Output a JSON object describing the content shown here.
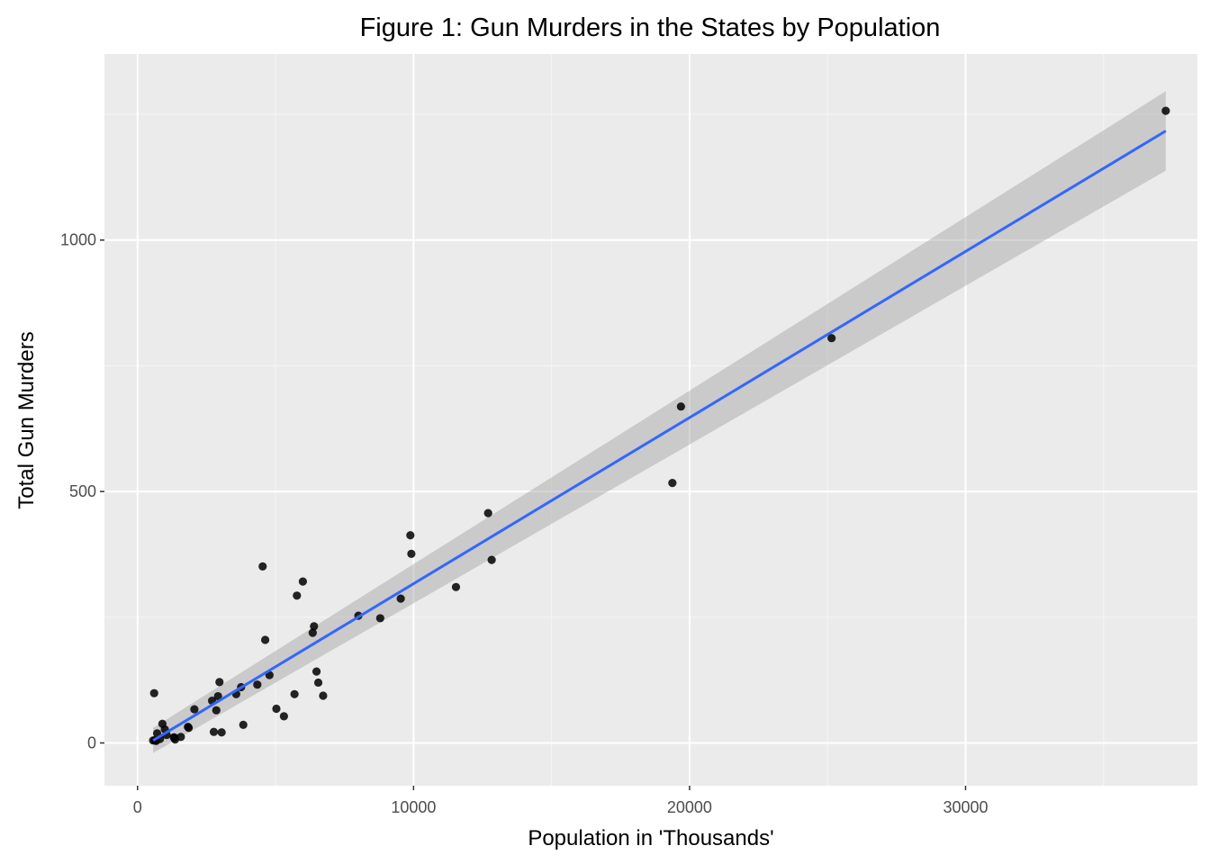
{
  "chart_data": {
    "type": "scatter",
    "title": "Figure 1: Gun Murders in the States by Population",
    "xlabel": "Population in 'Thousands'",
    "ylabel": "Total Gun Murders",
    "xlim": [
      -1200,
      38400
    ],
    "ylim": [
      -85,
      1370
    ],
    "x_ticks": [
      0,
      10000,
      20000,
      30000
    ],
    "x_tick_labels": [
      "0",
      "10000",
      "20000",
      "30000"
    ],
    "y_ticks": [
      0,
      500,
      1000
    ],
    "y_tick_labels": [
      "0",
      "500",
      "1000"
    ],
    "grid": true,
    "colors": {
      "panel_background": "#ebebeb",
      "grid_major": "#ffffff",
      "grid_minor": "#f5f5f5",
      "points": "#000000",
      "fit_line": "#3366ff",
      "ribbon": "#999999"
    },
    "points": [
      [
        37254,
        1257
      ],
      [
        25146,
        805
      ],
      [
        19378,
        517
      ],
      [
        19688,
        669
      ],
      [
        12702,
        457
      ],
      [
        12831,
        364
      ],
      [
        11537,
        310
      ],
      [
        9920,
        376
      ],
      [
        9884,
        413
      ],
      [
        9536,
        287
      ],
      [
        8792,
        248
      ],
      [
        8001,
        253
      ],
      [
        6724,
        94
      ],
      [
        6548,
        120
      ],
      [
        6484,
        142
      ],
      [
        6393,
        232
      ],
      [
        6346,
        219
      ],
      [
        5989,
        321
      ],
      [
        5774,
        293
      ],
      [
        5687,
        97
      ],
      [
        5304,
        53
      ],
      [
        5029,
        68
      ],
      [
        4780,
        135
      ],
      [
        4625,
        205
      ],
      [
        4533,
        351
      ],
      [
        4339,
        116
      ],
      [
        3831,
        36
      ],
      [
        3751,
        111
      ],
      [
        3574,
        97
      ],
      [
        3046,
        21
      ],
      [
        2968,
        121
      ],
      [
        2916,
        93
      ],
      [
        2853,
        65
      ],
      [
        2764,
        22
      ],
      [
        2700,
        84
      ],
      [
        2059,
        67
      ],
      [
        1853,
        30
      ],
      [
        1826,
        32
      ],
      [
        1568,
        12
      ],
      [
        1360,
        7
      ],
      [
        1328,
        11
      ],
      [
        1316,
        11
      ],
      [
        1053,
        16
      ],
      [
        989,
        27
      ],
      [
        900,
        38
      ],
      [
        814,
        8
      ],
      [
        710,
        19
      ],
      [
        674,
        4
      ],
      [
        626,
        5
      ],
      [
        602,
        99
      ],
      [
        564,
        5
      ]
    ],
    "fit": {
      "method": "linear",
      "x_range": [
        564,
        37254
      ],
      "y_start": 5,
      "y_end": 1217,
      "ci_low": [
        -20,
        1138
      ],
      "ci_high": [
        30,
        1296
      ]
    }
  }
}
